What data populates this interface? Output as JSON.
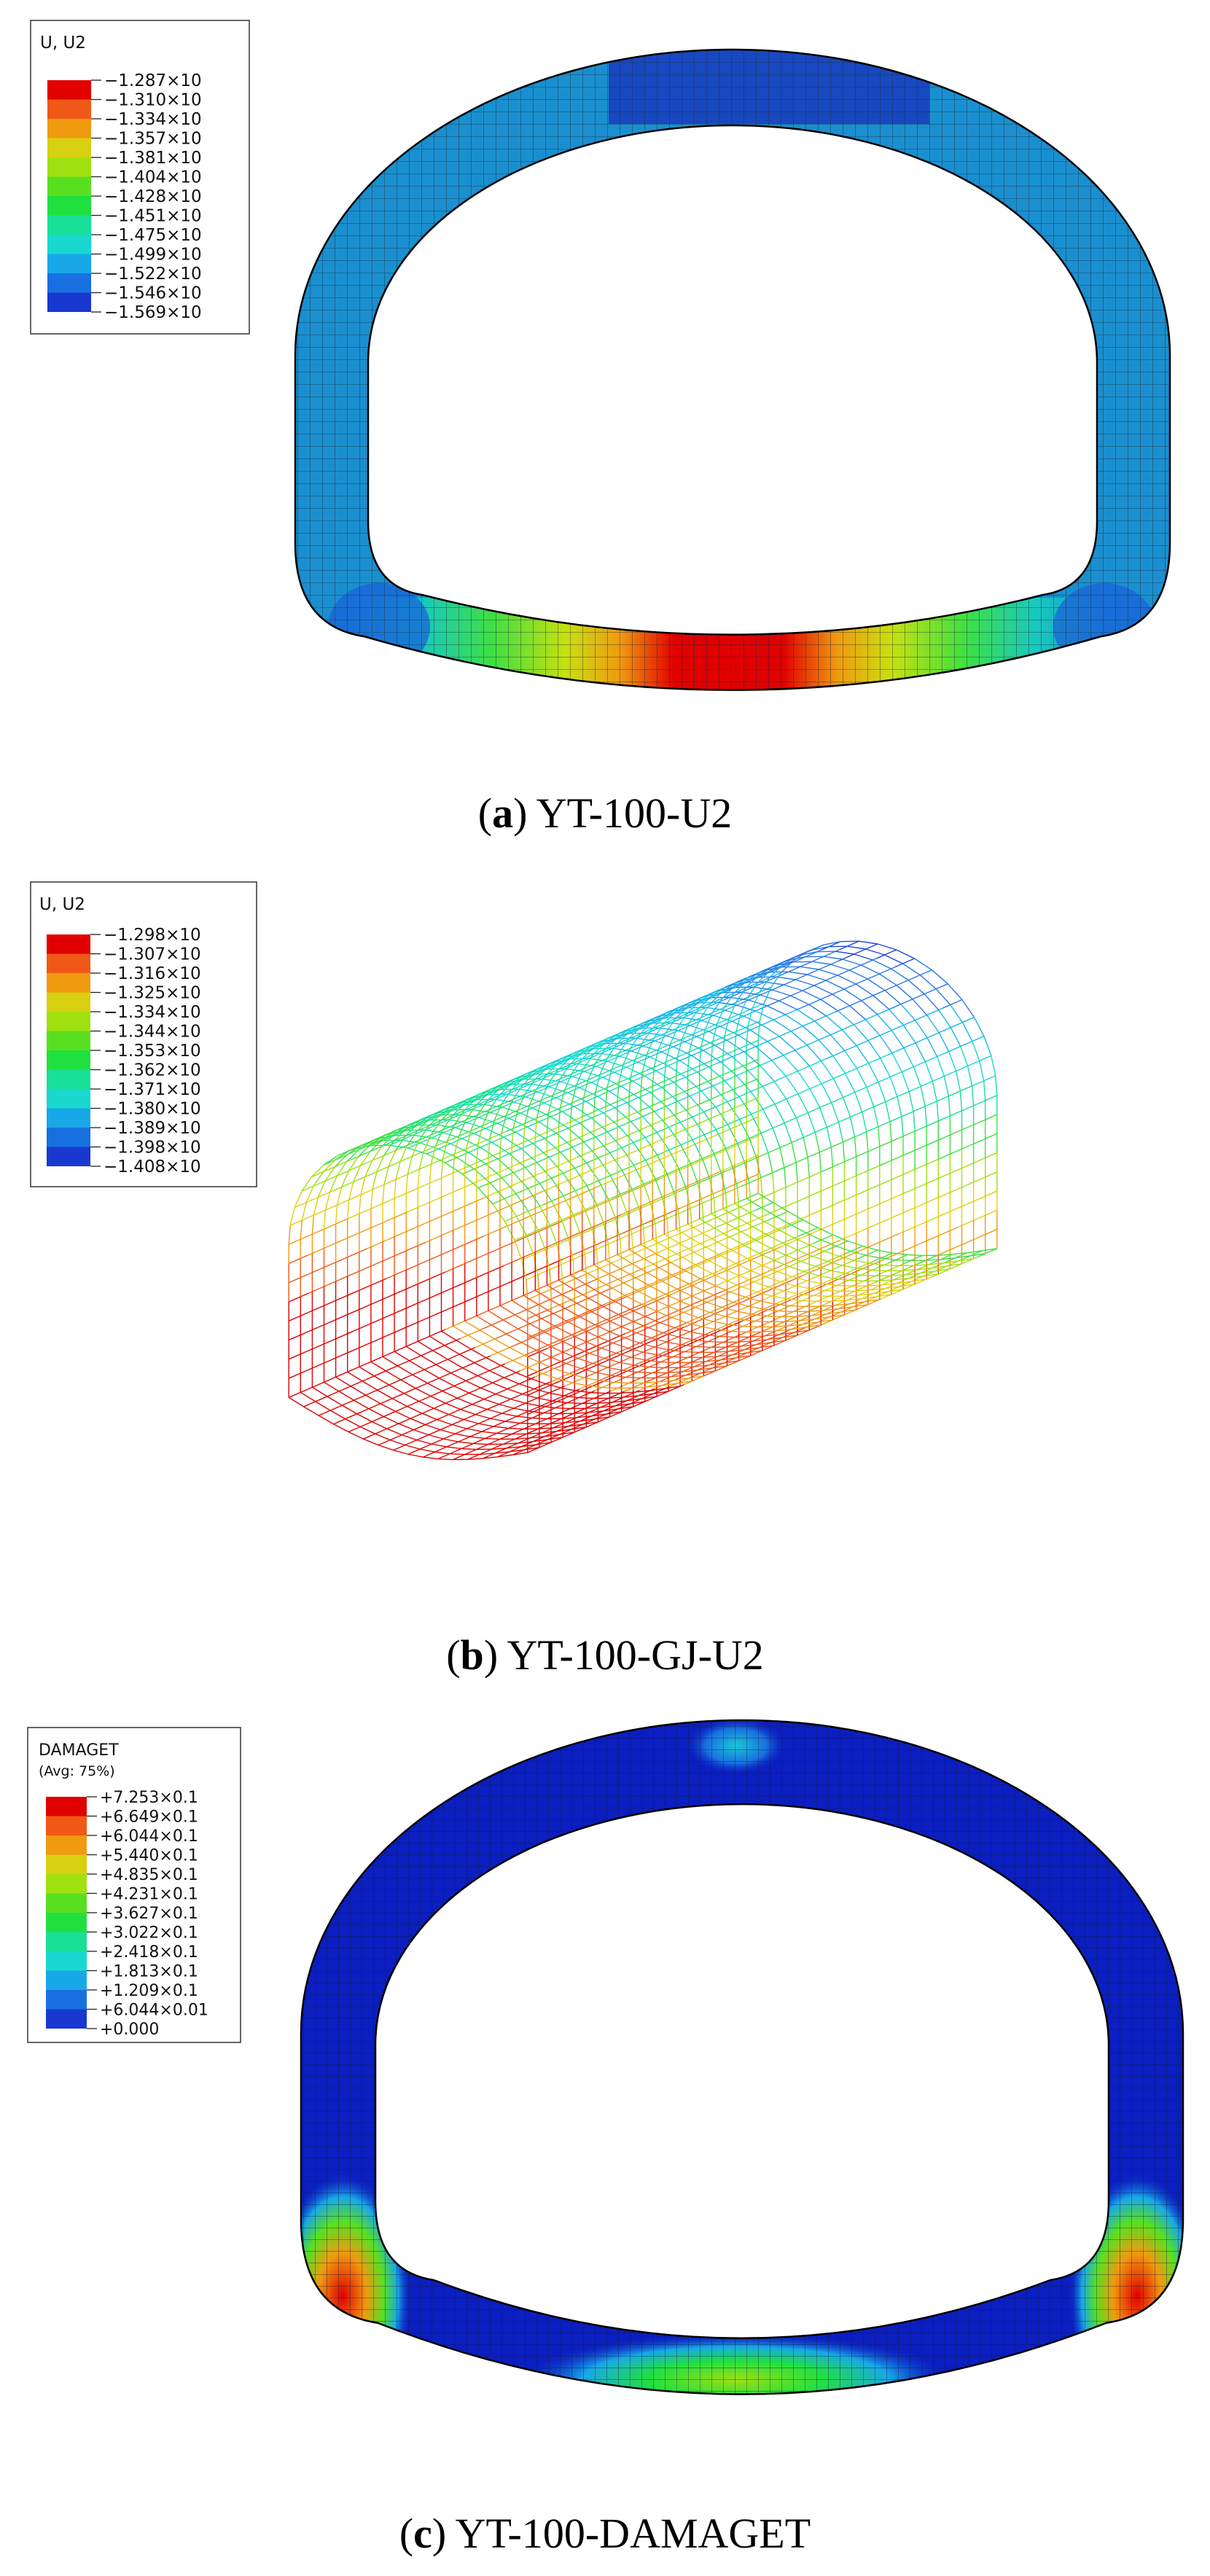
{
  "panels": [
    {
      "id": "a",
      "caption_letter": "a",
      "caption_text": " YT-100-U2",
      "legend": {
        "title": "U, U2",
        "subtitle": "",
        "labels": [
          "−1.287×10",
          "−1.310×10",
          "−1.334×10",
          "−1.357×10",
          "−1.381×10",
          "−1.404×10",
          "−1.428×10",
          "−1.451×10",
          "−1.475×10",
          "−1.499×10",
          "−1.522×10",
          "−1.546×10",
          "−1.569×10"
        ]
      }
    },
    {
      "id": "b",
      "caption_letter": "b",
      "caption_text": " YT-100-GJ-U2",
      "legend": {
        "title": "U, U2",
        "subtitle": "",
        "labels": [
          "−1.298×10",
          "−1.307×10",
          "−1.316×10",
          "−1.325×10",
          "−1.334×10",
          "−1.344×10",
          "−1.353×10",
          "−1.362×10",
          "−1.371×10",
          "−1.380×10",
          "−1.389×10",
          "−1.398×10",
          "−1.408×10"
        ]
      }
    },
    {
      "id": "c",
      "caption_letter": "c",
      "caption_text": " YT-100-DAMAGET",
      "legend": {
        "title": "DAMAGET",
        "subtitle": "(Avg: 75%)",
        "labels": [
          "+7.253×0.1",
          "+6.649×0.1",
          "+6.044×0.1",
          "+5.440×0.1",
          "+4.835×0.1",
          "+4.231×0.1",
          "+3.627×0.1",
          "+3.022×0.1",
          "+2.418×0.1",
          "+1.813×0.1",
          "+1.209×0.1",
          "+6.044×0.01",
          "+0.000"
        ]
      }
    }
  ],
  "colormap": [
    "#e00000",
    "#f05818",
    "#f09a10",
    "#d8d010",
    "#a0e010",
    "#58e020",
    "#20e040",
    "#18e098",
    "#18d8d0",
    "#18a8e8",
    "#1870e0",
    "#1838d0",
    "#0010c8"
  ],
  "colors": {
    "mesh_line": "#1a2a3a",
    "outline": "#000000",
    "lining_blue": "#1a8fcf",
    "crown_blue": "#1848c0",
    "damage_blue": "#0b1ec0"
  }
}
